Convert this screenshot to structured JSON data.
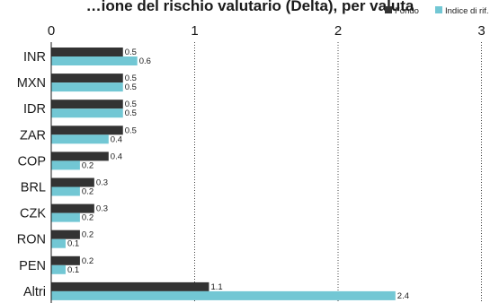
{
  "chart_data": {
    "type": "bar",
    "orientation": "horizontal",
    "title": "…ione del rischio valutario (Delta), per valuta",
    "categories": [
      "INR",
      "MXN",
      "IDR",
      "ZAR",
      "COP",
      "BRL",
      "CZK",
      "RON",
      "PEN",
      "Altri"
    ],
    "series": [
      {
        "name": "Fondo",
        "color": "#333333",
        "values": [
          0.5,
          0.5,
          0.5,
          0.5,
          0.4,
          0.3,
          0.3,
          0.2,
          0.2,
          1.1
        ]
      },
      {
        "name": "Indice di rif.",
        "color": "#72c7d4",
        "values": [
          0.6,
          0.5,
          0.5,
          0.4,
          0.2,
          0.2,
          0.2,
          0.1,
          0.1,
          2.4
        ]
      }
    ],
    "xticks": [
      "0",
      "1",
      "2",
      "3"
    ],
    "xlim": [
      0,
      3
    ],
    "grid": "vertical dotted",
    "legend": "top-right",
    "xlabel": "",
    "ylabel": ""
  }
}
